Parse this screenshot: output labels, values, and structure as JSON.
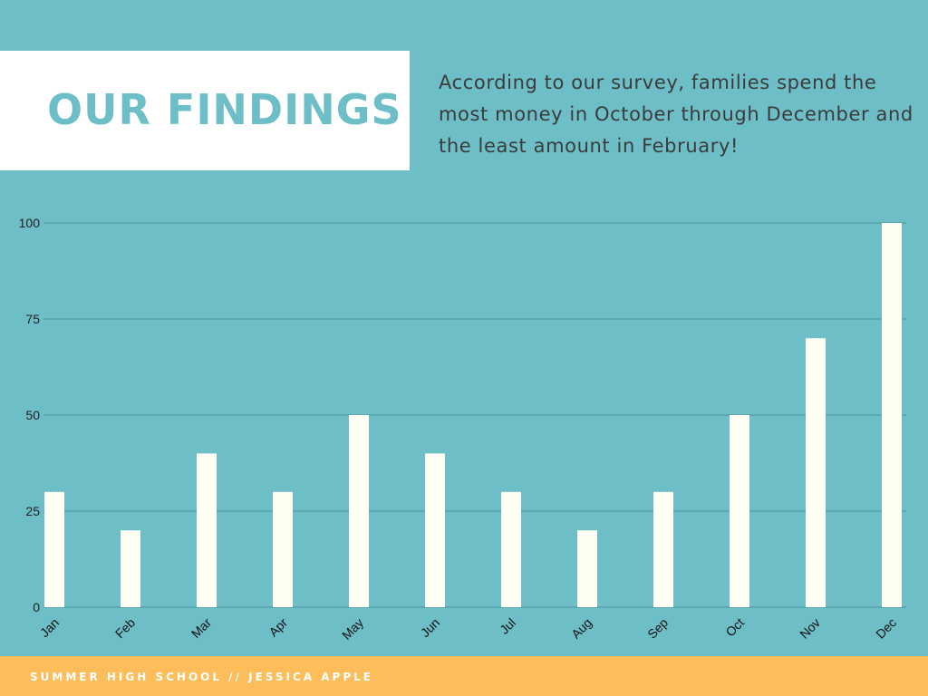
{
  "header": {
    "title": "OUR FINDINGS",
    "description": "According to our survey, families spend the most money in October through December and the least amount in February!"
  },
  "footer": {
    "text": "SUMMER HIGH SCHOOL // JESSICA APPLE"
  },
  "colors": {
    "background": "#6dbec7",
    "bar": "#fffff3",
    "gridline": "#4f9aa6",
    "footer": "#fdbd5a",
    "title": "#6dbec7"
  },
  "chart_data": {
    "type": "bar",
    "title": "",
    "xlabel": "",
    "ylabel": "",
    "categories": [
      "Jan",
      "Feb",
      "Mar",
      "Apr",
      "May",
      "Jun",
      "Jul",
      "Aug",
      "Sep",
      "Oct",
      "Nov",
      "Dec"
    ],
    "values": [
      30,
      20,
      40,
      30,
      50,
      40,
      30,
      20,
      30,
      50,
      70,
      100
    ],
    "ylim": [
      0,
      100
    ],
    "yticks": [
      0,
      25,
      50,
      75,
      100
    ],
    "grid": true,
    "legend": "none"
  }
}
